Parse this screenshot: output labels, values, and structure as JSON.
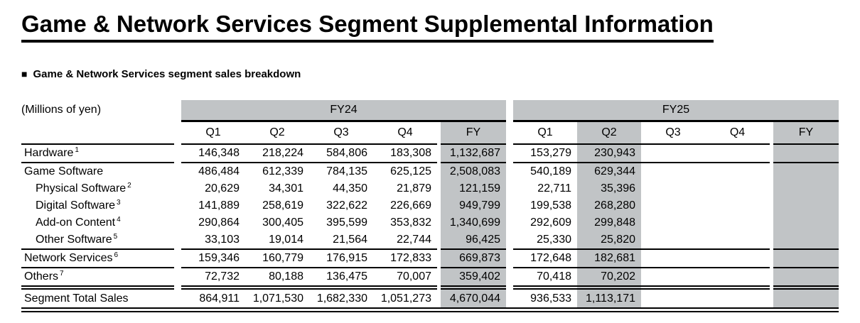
{
  "page": {
    "title": "Game & Network Services Segment Supplemental Information",
    "section_marker": "■",
    "section_title": "Game & Network Services segment sales breakdown",
    "units_label": "(Millions of yen)"
  },
  "table": {
    "highlight_color": "#c1c4c6",
    "column_groups": [
      {
        "label": "FY24",
        "columns": [
          "Q1",
          "Q2",
          "Q3",
          "Q4",
          "FY"
        ]
      },
      {
        "label": "FY25",
        "columns": [
          "Q1",
          "Q2",
          "Q3",
          "Q4",
          "FY"
        ]
      }
    ],
    "rows": [
      {
        "label": "Hardware",
        "footnote": "1",
        "indent": false,
        "fy24": [
          "146,348",
          "218,224",
          "584,806",
          "183,308",
          "1,132,687"
        ],
        "fy25": [
          "153,279",
          "230,943",
          "",
          "",
          ""
        ]
      },
      {
        "label": "Game Software",
        "footnote": "",
        "indent": false,
        "fy24": [
          "486,484",
          "612,339",
          "784,135",
          "625,125",
          "2,508,083"
        ],
        "fy25": [
          "540,189",
          "629,344",
          "",
          "",
          ""
        ]
      },
      {
        "label": "Physical Software",
        "footnote": "2",
        "indent": true,
        "fy24": [
          "20,629",
          "34,301",
          "44,350",
          "21,879",
          "121,159"
        ],
        "fy25": [
          "22,711",
          "35,396",
          "",
          "",
          ""
        ]
      },
      {
        "label": "Digital Software",
        "footnote": "3",
        "indent": true,
        "fy24": [
          "141,889",
          "258,619",
          "322,622",
          "226,669",
          "949,799"
        ],
        "fy25": [
          "199,538",
          "268,280",
          "",
          "",
          ""
        ]
      },
      {
        "label": "Add-on Content",
        "footnote": "4",
        "indent": true,
        "fy24": [
          "290,864",
          "300,405",
          "395,599",
          "353,832",
          "1,340,699"
        ],
        "fy25": [
          "292,609",
          "299,848",
          "",
          "",
          ""
        ]
      },
      {
        "label": "Other Software",
        "footnote": "5",
        "indent": true,
        "fy24": [
          "33,103",
          "19,014",
          "21,564",
          "22,744",
          "96,425"
        ],
        "fy25": [
          "25,330",
          "25,820",
          "",
          "",
          ""
        ]
      },
      {
        "label": "Network Services",
        "footnote": "6",
        "indent": false,
        "fy24": [
          "159,346",
          "160,779",
          "176,915",
          "172,833",
          "669,873"
        ],
        "fy25": [
          "172,648",
          "182,681",
          "",
          "",
          ""
        ]
      },
      {
        "label": "Others",
        "footnote": "7",
        "indent": false,
        "fy24": [
          "72,732",
          "80,188",
          "136,475",
          "70,007",
          "359,402"
        ],
        "fy25": [
          "70,418",
          "70,202",
          "",
          "",
          ""
        ]
      },
      {
        "label": "Segment Total Sales",
        "footnote": "",
        "indent": false,
        "fy24": [
          "864,911",
          "1,071,530",
          "1,682,330",
          "1,051,273",
          "4,670,044"
        ],
        "fy25": [
          "936,533",
          "1,113,171",
          "",
          "",
          ""
        ]
      }
    ]
  }
}
